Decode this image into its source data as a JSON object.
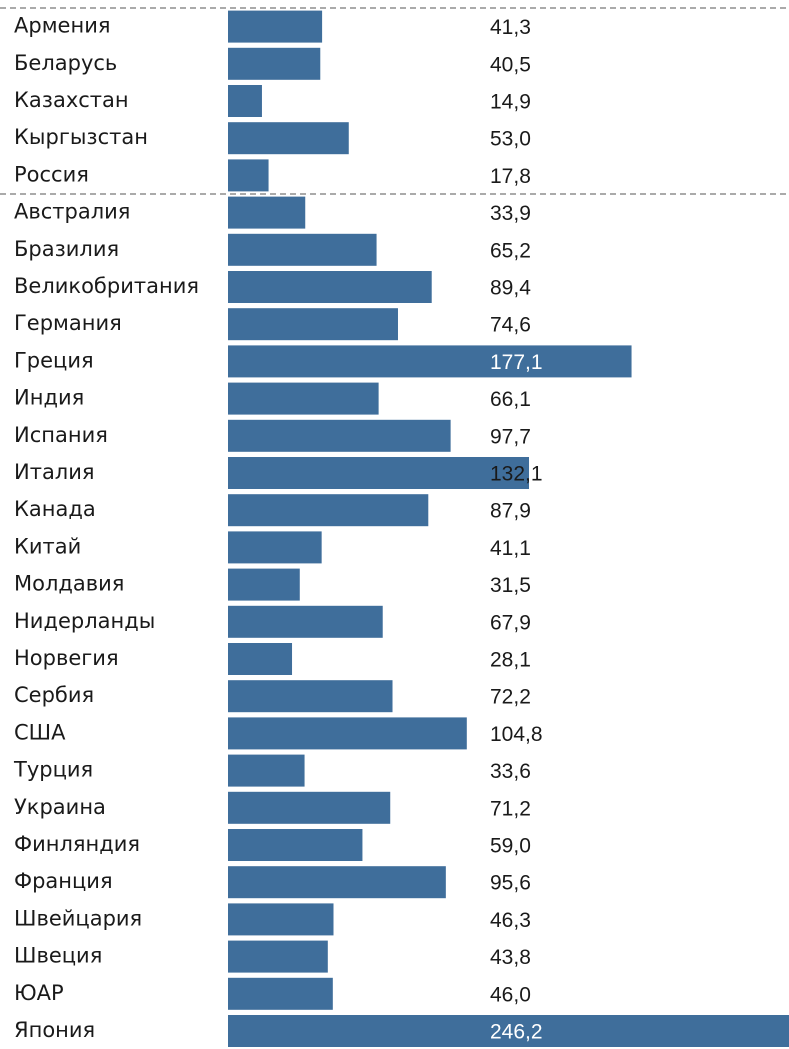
{
  "chart_data": {
    "type": "bar",
    "orientation": "horizontal",
    "color": "#3f6e9b",
    "xlim": [
      0,
      246.2
    ],
    "groups": [
      {
        "categories": [
          "Армения",
          "Беларусь",
          "Казахстан",
          "Кыргызстан",
          "Россия"
        ],
        "values": [
          41.3,
          40.5,
          14.9,
          53.0,
          17.8
        ],
        "value_labels": [
          "41,3",
          "40,5",
          "14,9",
          "53,0",
          "17,8"
        ]
      },
      {
        "categories": [
          "Австралия",
          "Бразилия",
          "Великобритания",
          "Германия",
          "Греция",
          "Индия",
          "Испания",
          "Италия",
          "Канада",
          "Китай",
          "Молдавия",
          "Нидерланды",
          "Норвегия",
          "Сербия",
          "США",
          "Турция",
          "Украина",
          "Финляндия",
          "Франция",
          "Швейцария",
          "Швеция",
          "ЮАР",
          "Япония"
        ],
        "values": [
          33.9,
          65.2,
          89.4,
          74.6,
          177.1,
          66.1,
          97.7,
          132.1,
          87.9,
          41.1,
          31.5,
          67.9,
          28.1,
          72.2,
          104.8,
          33.6,
          71.2,
          59.0,
          95.6,
          46.3,
          43.8,
          46.0,
          246.2
        ],
        "value_labels": [
          "33,9",
          "65,2",
          "89,4",
          "74,6",
          "177,1",
          "66,1",
          "97,7",
          "132,1",
          "87,9",
          "41,1",
          "31,5",
          "67,9",
          "28,1",
          "72,2",
          "104,8",
          "33,6",
          "71,2",
          "59,0",
          "95,6",
          "46,3",
          "43,8",
          "46,0",
          "246,2"
        ]
      }
    ]
  }
}
